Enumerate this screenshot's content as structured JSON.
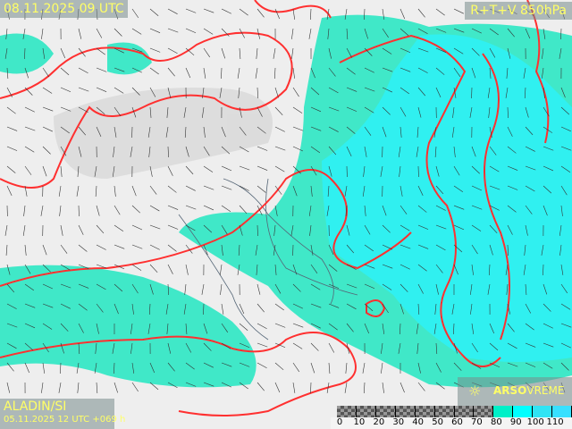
{
  "header": {
    "valid_time": "08.11.2025 09 UTC",
    "parameter": "R+T+V 850hPa"
  },
  "footer": {
    "model": "ALADIN/SI",
    "run": "05.11.2025 12 UTC +069 h"
  },
  "logo": {
    "text_bold": "ARSO",
    "text": "VREME",
    "icon": "sun-icon"
  },
  "colorbar": {
    "ticks": [
      "0",
      "10",
      "20",
      "30",
      "40",
      "50",
      "60",
      "70",
      "80",
      "90",
      "100",
      "110"
    ],
    "colors": [
      "checker",
      "checker",
      "checker",
      "checker",
      "checker",
      "checker",
      "checker",
      "checker",
      "#00f0c8",
      "#00ffff",
      "#30e4f4",
      "#38e0ff"
    ]
  },
  "colors": {
    "humidity_low": "#40e8c8",
    "humidity_high": "#30f0f0",
    "isotherm": "#ff3030",
    "land": "#f0f0f0",
    "label_text": "#ffff66"
  }
}
